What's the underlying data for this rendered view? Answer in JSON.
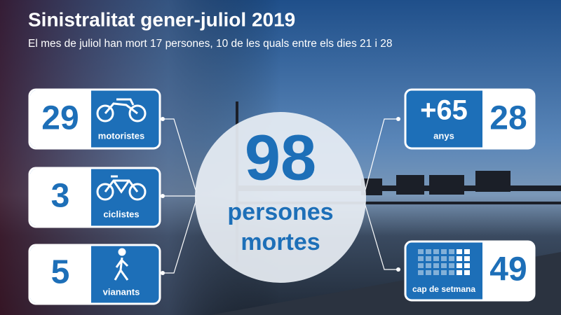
{
  "header": {
    "title": "Sinistralitat gener-juliol 2019",
    "subtitle": "El mes de juliol han mort 17 persones, 10 de les quals entre els dies 21 i 28"
  },
  "total": {
    "value": 98,
    "label_lines": [
      "persones",
      "mortes"
    ]
  },
  "left_cards": [
    {
      "value": 29,
      "label": "motoristes"
    },
    {
      "value": 3,
      "label": "ciclistes"
    },
    {
      "value": 5,
      "label": "vianants"
    }
  ],
  "right_cards": [
    {
      "heading": "+65",
      "label": "anys",
      "value": 28
    },
    {
      "label": "cap de setmana",
      "value": 49
    }
  ]
}
